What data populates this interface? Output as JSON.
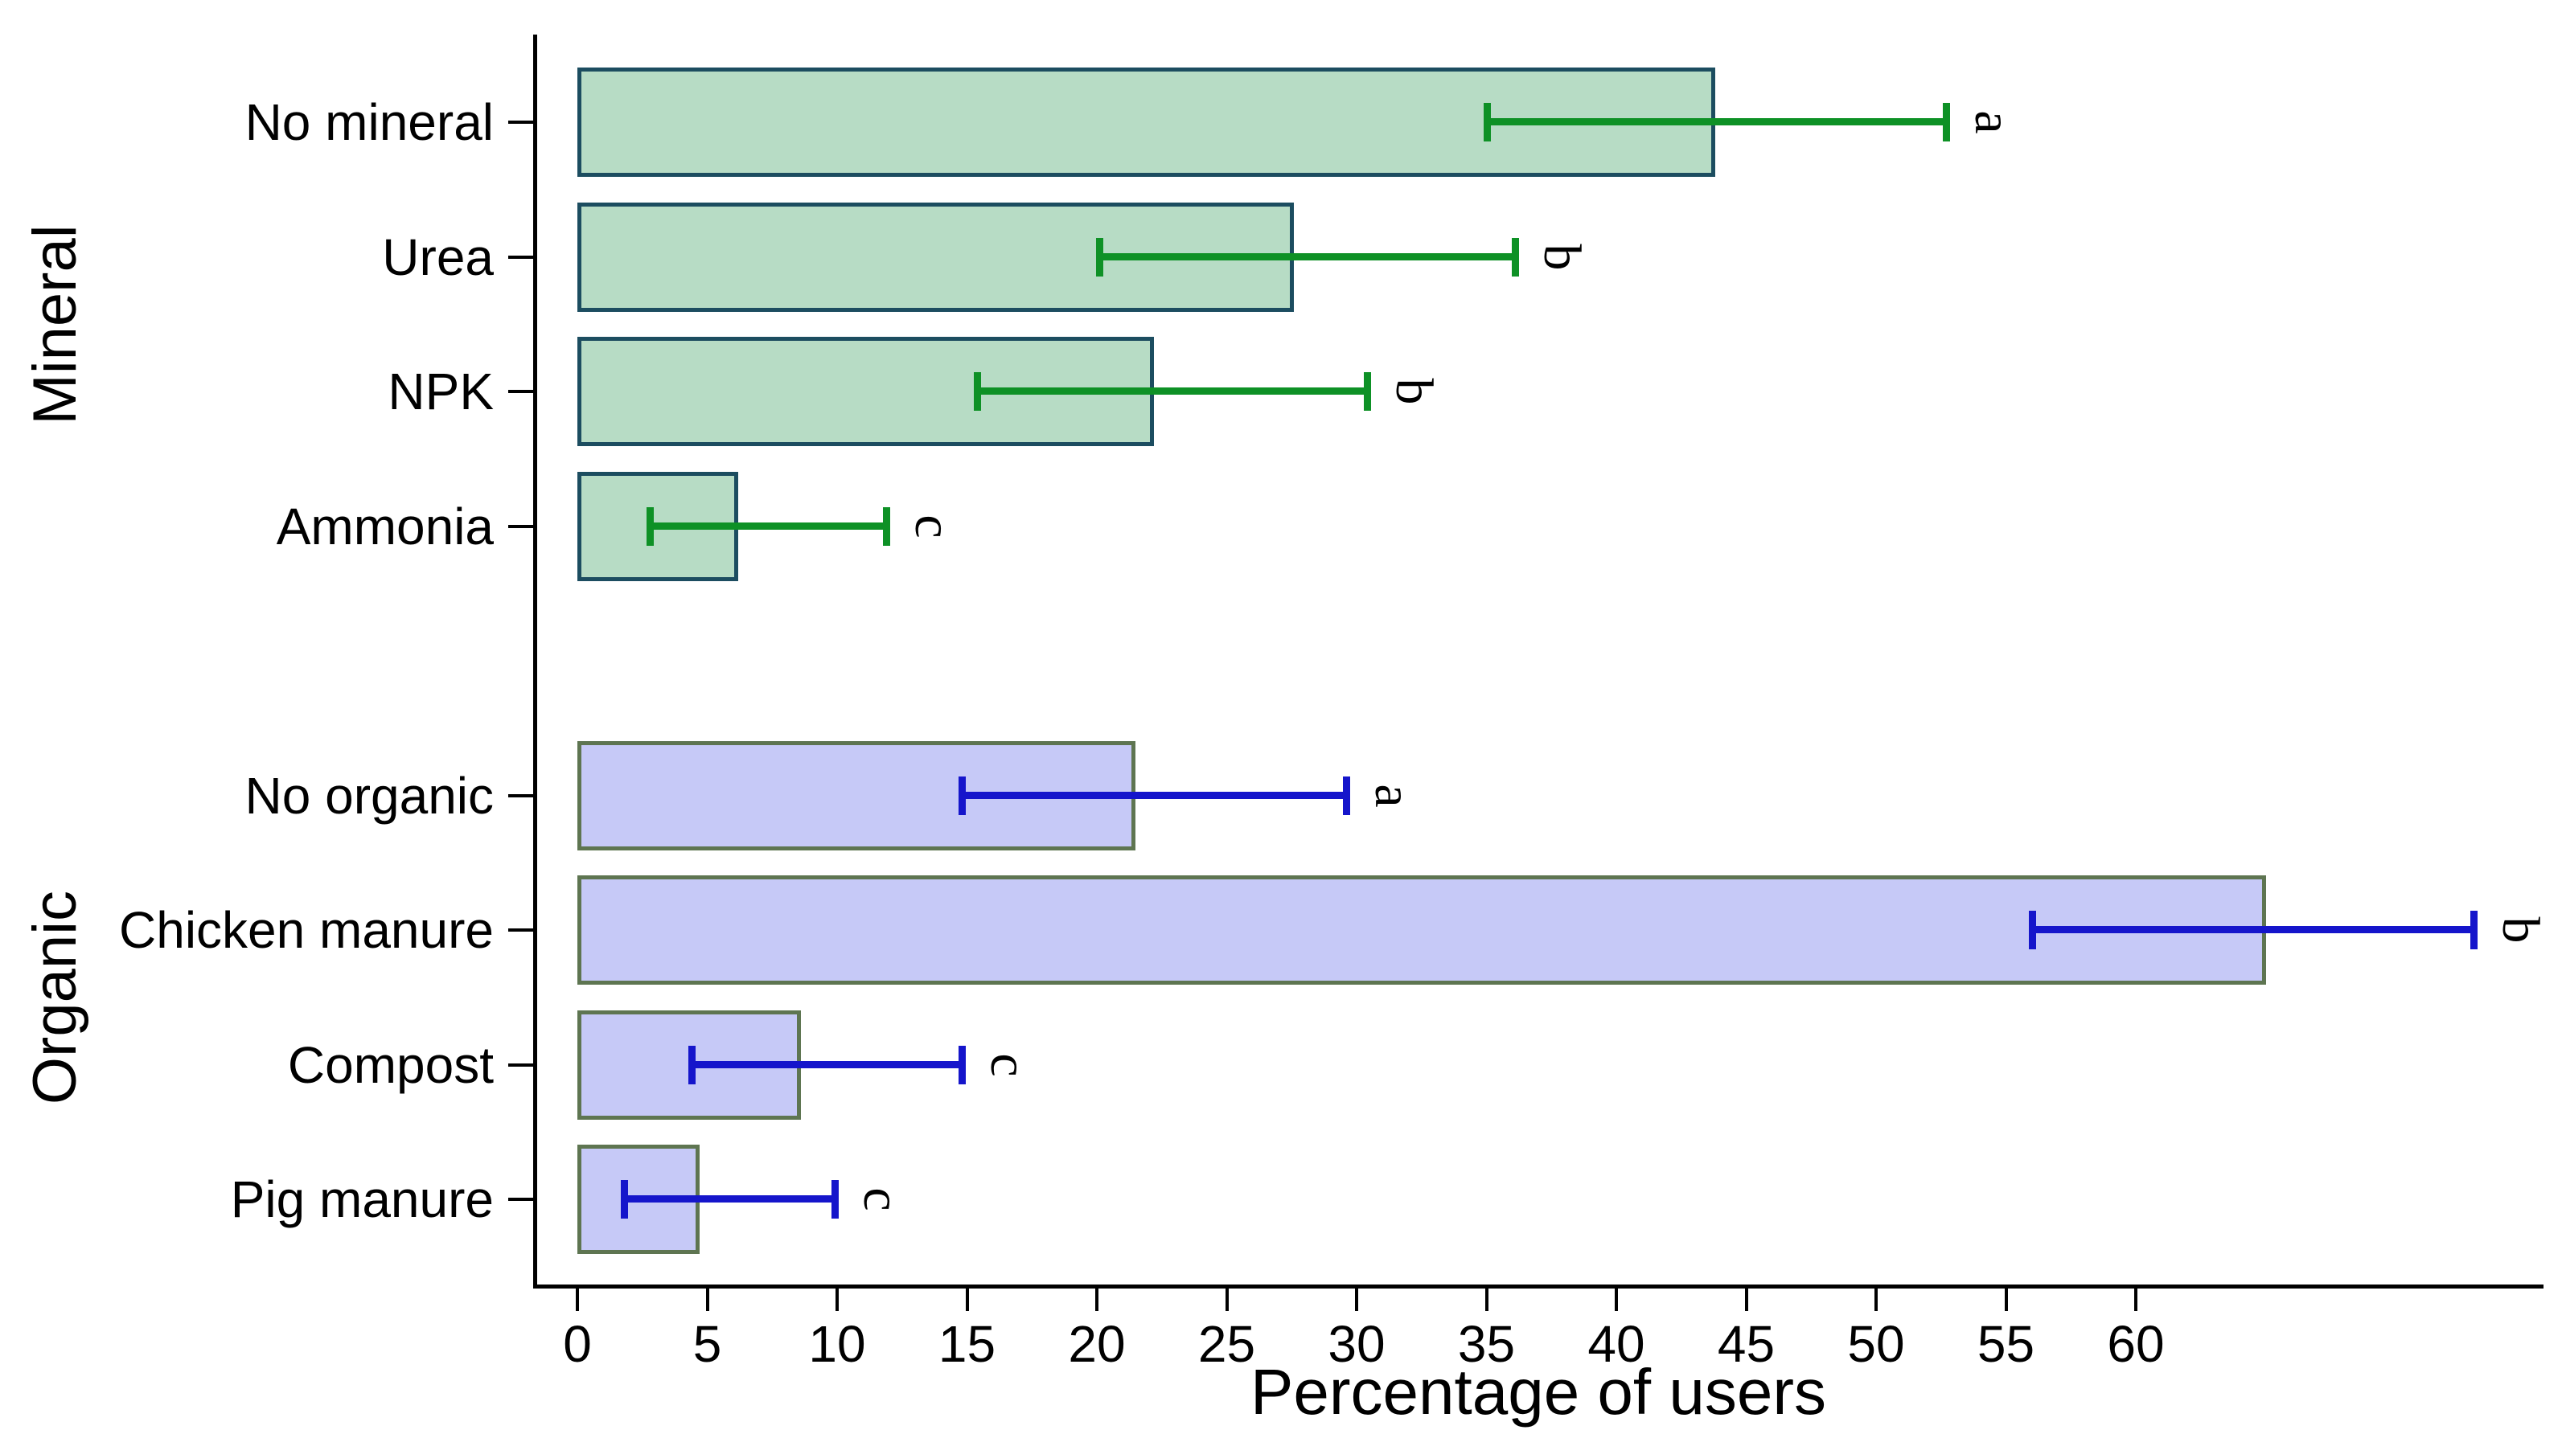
{
  "chart_data": {
    "type": "bar",
    "orientation": "horizontal",
    "title": "",
    "xlabel": "Percentage of users",
    "ylabel": "",
    "x_ticks": [
      0,
      5,
      10,
      15,
      20,
      25,
      30,
      35,
      40,
      45,
      50,
      55,
      60
    ],
    "xlim": [
      0,
      75
    ],
    "grid": false,
    "legend": null,
    "error_bars": true,
    "groups": [
      {
        "name": "Mineral",
        "bar_fill": "#b7dcc5",
        "bar_border": "#1c4d60",
        "error_color": "#0e9126",
        "bars": [
          {
            "label": "No mineral",
            "value": 43.8,
            "ci_low": 35.0,
            "ci_high": 52.7,
            "sig": "a"
          },
          {
            "label": "Urea",
            "value": 27.6,
            "ci_low": 20.1,
            "ci_high": 36.1,
            "sig": "b"
          },
          {
            "label": "NPK",
            "value": 22.2,
            "ci_low": 15.4,
            "ci_high": 30.4,
            "sig": "b"
          },
          {
            "label": "Ammonia",
            "value": 6.2,
            "ci_low": 2.8,
            "ci_high": 11.9,
            "sig": "c"
          }
        ]
      },
      {
        "name": "Organic",
        "bar_fill": "#c6c9f7",
        "bar_border": "#5e7551",
        "error_color": "#1515cb",
        "bars": [
          {
            "label": "No organic",
            "value": 21.5,
            "ci_low": 14.8,
            "ci_high": 29.6,
            "sig": "a"
          },
          {
            "label": "Chicken manure",
            "value": 65.0,
            "ci_low": 56.0,
            "ci_high": 73.0,
            "sig": "b"
          },
          {
            "label": "Compost",
            "value": 8.6,
            "ci_low": 4.4,
            "ci_high": 14.8,
            "sig": "c"
          },
          {
            "label": "Pig manure",
            "value": 4.7,
            "ci_low": 1.8,
            "ci_high": 9.9,
            "sig": "c"
          }
        ]
      }
    ]
  }
}
